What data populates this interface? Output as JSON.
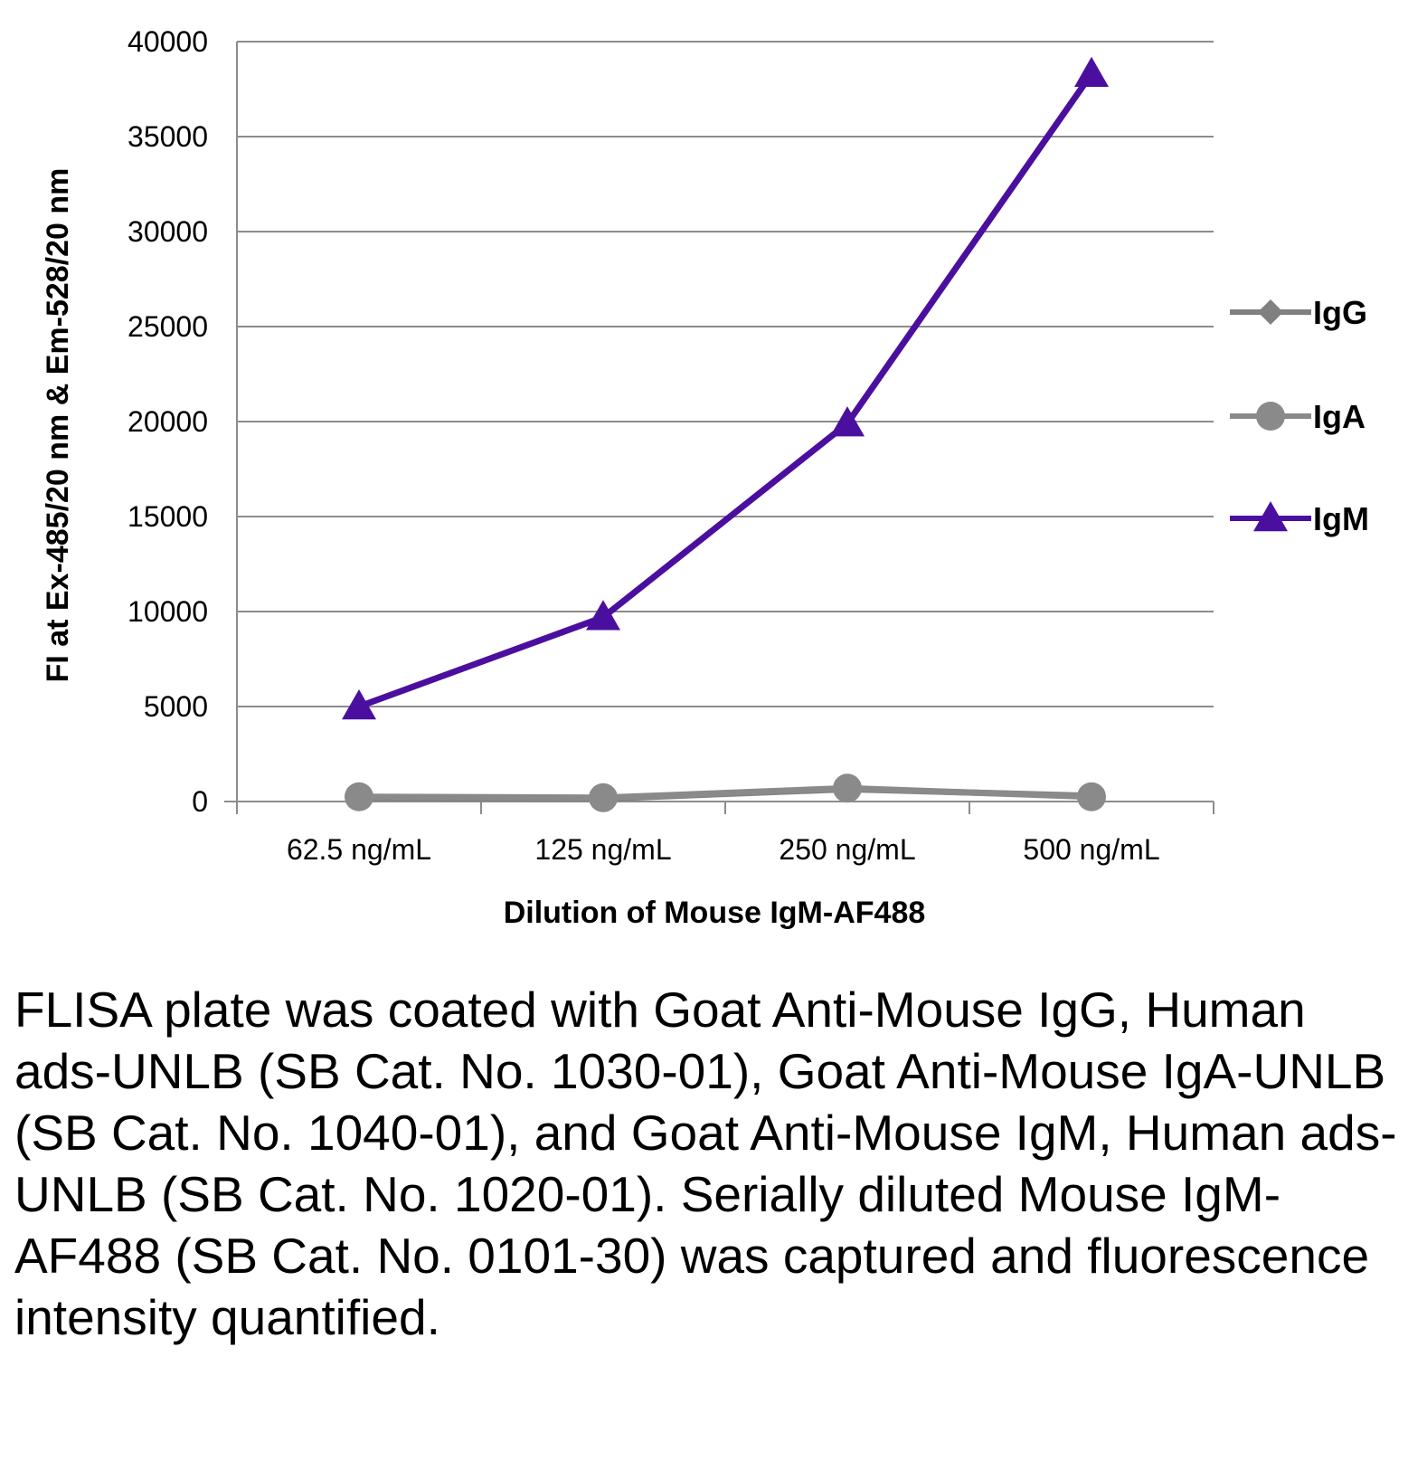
{
  "chart_data": {
    "type": "line",
    "categories": [
      "62.5 ng/mL",
      "125 ng/mL",
      "250 ng/mL",
      "500 ng/mL"
    ],
    "series": [
      {
        "name": "IgG",
        "marker": "diamond",
        "color": "#808080",
        "values": [
          200,
          150,
          650,
          300
        ]
      },
      {
        "name": "IgA",
        "marker": "circle",
        "color": "#8a8a8a",
        "values": [
          250,
          200,
          700,
          250
        ]
      },
      {
        "name": "IgM",
        "marker": "triangle",
        "color": "#4b0fa0",
        "values": [
          5000,
          9700,
          19900,
          38300
        ]
      }
    ],
    "xlabel": "Dilution of Mouse IgM-AF488",
    "ylabel": "FI at Ex-485/20 nm & Em-528/20 nm",
    "ylim": [
      0,
      40000
    ],
    "yticks": [
      0,
      5000,
      10000,
      15000,
      20000,
      25000,
      30000,
      35000,
      40000
    ],
    "grid": true,
    "legend": "right"
  },
  "caption": "FLISA plate was coated with Goat Anti-Mouse IgG, Human ads-UNLB (SB Cat. No. 1030-01), Goat Anti-Mouse IgA-UNLB (SB Cat. No. 1040-01), and Goat Anti-Mouse IgM, Human ads-UNLB (SB Cat. No. 1020-01).  Serially diluted Mouse IgM-AF488 (SB Cat. No. 0101-30) was captured and fluorescence intensity quantified."
}
